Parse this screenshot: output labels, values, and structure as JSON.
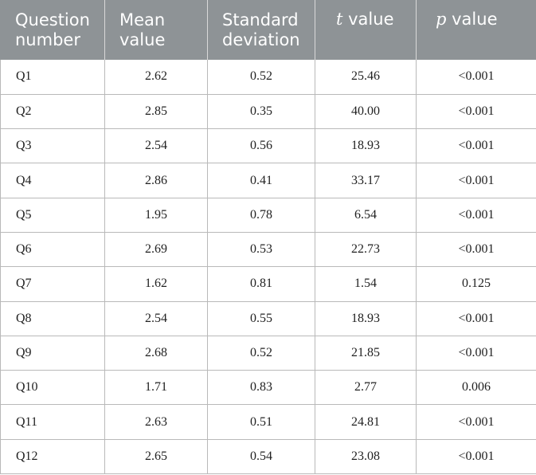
{
  "table": {
    "headers": {
      "question": [
        "Question",
        "number"
      ],
      "mean": [
        "Mean",
        "value"
      ],
      "sd": [
        "Standard",
        "deviation"
      ],
      "t": {
        "symbol": "t",
        "rest": " value"
      },
      "p": {
        "symbol": "p",
        "rest": " value"
      }
    },
    "rows": [
      {
        "q": "Q1",
        "mean": "2.62",
        "sd": "0.52",
        "t": "25.46",
        "p": "<0.001"
      },
      {
        "q": "Q2",
        "mean": "2.85",
        "sd": "0.35",
        "t": "40.00",
        "p": "<0.001"
      },
      {
        "q": "Q3",
        "mean": "2.54",
        "sd": "0.56",
        "t": "18.93",
        "p": "<0.001"
      },
      {
        "q": "Q4",
        "mean": "2.86",
        "sd": "0.41",
        "t": "33.17",
        "p": "<0.001"
      },
      {
        "q": "Q5",
        "mean": "1.95",
        "sd": "0.78",
        "t": "6.54",
        "p": "<0.001"
      },
      {
        "q": "Q6",
        "mean": "2.69",
        "sd": "0.53",
        "t": "22.73",
        "p": "<0.001"
      },
      {
        "q": "Q7",
        "mean": "1.62",
        "sd": "0.81",
        "t": "1.54",
        "p": "0.125"
      },
      {
        "q": "Q8",
        "mean": "2.54",
        "sd": "0.55",
        "t": "18.93",
        "p": "<0.001"
      },
      {
        "q": "Q9",
        "mean": "2.68",
        "sd": "0.52",
        "t": "21.85",
        "p": "<0.001"
      },
      {
        "q": "Q10",
        "mean": "1.71",
        "sd": "0.83",
        "t": "2.77",
        "p": "0.006"
      },
      {
        "q": "Q11",
        "mean": "2.63",
        "sd": "0.51",
        "t": "24.81",
        "p": "<0.001"
      },
      {
        "q": "Q12",
        "mean": "2.65",
        "sd": "0.54",
        "t": "23.08",
        "p": "<0.001"
      }
    ]
  },
  "colors": {
    "header_bg": "#8e9396",
    "header_text": "#ffffff",
    "grid": "#b9b9b9"
  }
}
